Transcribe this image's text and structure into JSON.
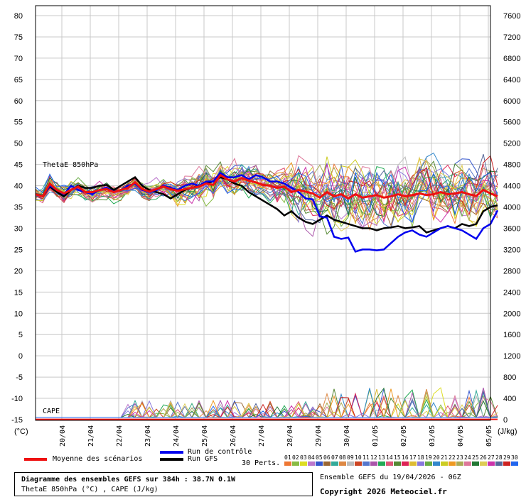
{
  "chart_data": {
    "type": "line",
    "left_axis": {
      "unit_label": "(°C)",
      "ylim": [
        -15,
        80
      ],
      "ticks": [
        80,
        75,
        70,
        65,
        60,
        55,
        50,
        45,
        40,
        35,
        30,
        25,
        20,
        15,
        10,
        5,
        0,
        -5,
        -10,
        -15
      ]
    },
    "right_axis": {
      "unit_label": "(J/kg)",
      "ylim": [
        0,
        7600
      ],
      "ticks": [
        7600,
        7200,
        6800,
        6400,
        6000,
        5600,
        5200,
        4800,
        4400,
        4000,
        3600,
        3200,
        2800,
        2400,
        2000,
        1600,
        1200,
        800,
        400,
        0
      ]
    },
    "x_ticks": [
      "20/04",
      "21/04",
      "22/04",
      "23/04",
      "24/04",
      "25/04",
      "26/04",
      "27/04",
      "28/04",
      "29/04",
      "30/04",
      "01/05",
      "02/05",
      "03/05",
      "04/05",
      "05/05"
    ],
    "x_range": [
      0,
      64
    ],
    "grid": true,
    "annotations": {
      "thetae": "ThetaE 850hPa",
      "cape": "CAPE"
    },
    "series": [
      {
        "name": "Moyenne des scénarios",
        "color": "#ee1111",
        "values": [
          38,
          37.5,
          40.5,
          39,
          38.2,
          39,
          39.8,
          38.5,
          38.5,
          39,
          39.2,
          38.5,
          39,
          39.5,
          40.8,
          39.2,
          38.6,
          39.2,
          39.8,
          39.2,
          38.8,
          39.2,
          39.5,
          39.8,
          40.5,
          40.2,
          42.5,
          41.5,
          41,
          41.8,
          41.2,
          40.8,
          40.2,
          40,
          39.5,
          39.8,
          38.5,
          39,
          38.6,
          38.2,
          37.2,
          38.5,
          37.5,
          38,
          37,
          38,
          37.2,
          37.5,
          37.8,
          37.2,
          37.5,
          38,
          37.5,
          37.8,
          38.2,
          37.8,
          38,
          38.5,
          38,
          38.2,
          38.5,
          38,
          37.6,
          39,
          38.2,
          37.5
        ]
      },
      {
        "name": "Run de contrôle",
        "color": "#0000ee",
        "values": [
          38,
          37.5,
          40,
          39,
          38,
          40,
          39,
          38.5,
          38,
          39,
          39.5,
          38.6,
          39,
          40,
          40.5,
          39,
          38.5,
          39,
          40,
          39.5,
          39,
          40,
          40.5,
          40,
          41,
          41,
          43,
          42,
          42,
          42.5,
          41.5,
          42.5,
          42,
          41,
          41,
          40.5,
          39.5,
          38.5,
          37,
          36.8,
          32.8,
          32.5,
          28,
          27.5,
          27.8,
          24.5,
          25,
          25,
          24.8,
          25,
          26.5,
          28,
          29,
          29.5,
          28.5,
          28,
          29,
          30,
          30.5,
          30,
          29.5,
          28.5,
          27.5,
          30,
          31,
          34.2
        ]
      },
      {
        "name": "Run GFS",
        "color": "#000000",
        "values": [
          38,
          37.5,
          39.8,
          38.5,
          37.5,
          39,
          40,
          39.5,
          39.5,
          40,
          40.2,
          39,
          40,
          41,
          42,
          40,
          39,
          38.5,
          38,
          37,
          38,
          39,
          39.5,
          40,
          40.5,
          41,
          42,
          41.5,
          40.5,
          40,
          38.5,
          37.5,
          36.5,
          35.5,
          34.5,
          33,
          34,
          32.5,
          31.5,
          31,
          32,
          33,
          32,
          31.5,
          31,
          30.5,
          30,
          30,
          29.5,
          30,
          30.2,
          30.5,
          30,
          30.2,
          30.5,
          29,
          29.5,
          30,
          30.5,
          30,
          31,
          30.5,
          31,
          34,
          35,
          35.4
        ]
      },
      {
        "name": "CAPE",
        "color": "#000000",
        "values": [
          5,
          5,
          5,
          5,
          5,
          5,
          5,
          5,
          5,
          5,
          5,
          5,
          5,
          5,
          5,
          5,
          5,
          5,
          5,
          5,
          5,
          5,
          5,
          5,
          5,
          5,
          5,
          5,
          5,
          5,
          5,
          5,
          5,
          5,
          5,
          5,
          5,
          5,
          5,
          5,
          5,
          5,
          5,
          5,
          5,
          5,
          5,
          5,
          5,
          5,
          5,
          5,
          5,
          5,
          5,
          5,
          5,
          5,
          5,
          5,
          5,
          5,
          5,
          5,
          5,
          5
        ]
      }
    ],
    "legend": {
      "mean": "Moyenne des scénarios",
      "control": "Run de contrôle",
      "gfs": "Run GFS",
      "perts": "30 Perts.",
      "members": [
        "01",
        "02",
        "03",
        "04",
        "05",
        "06",
        "07",
        "08",
        "09",
        "10",
        "11",
        "12",
        "13",
        "14",
        "15",
        "16",
        "17",
        "18",
        "19",
        "20",
        "21",
        "22",
        "23",
        "24",
        "25",
        "26",
        "27",
        "28",
        "29",
        "30"
      ],
      "member_colors": [
        "#ee7733",
        "#88bb44",
        "#dddd22",
        "#bb77cc",
        "#3355cc",
        "#996633",
        "#33aa99",
        "#dd8844",
        "#bbbbbb",
        "#cc4422",
        "#5577cc",
        "#aa55aa",
        "#22aa55",
        "#dd5577",
        "#558833",
        "#dd2255",
        "#ddbb33",
        "#8877dd",
        "#66aa44",
        "#3388cc",
        "#cccc22",
        "#ee9922",
        "#aaaa55",
        "#dd7799",
        "#227733",
        "#ddcc55",
        "#cc33aa",
        "#556699",
        "#cc2222",
        "#2266ee"
      ]
    }
  },
  "info": {
    "line1": "Diagramme des ensembles GEFS sur 384h : 38.7N 0.1W",
    "line2": "ThetaE 850hPa (°C) , CAPE (J/kg)",
    "run": "Ensemble GEFS du 19/04/2026 - 06Z",
    "copyright": "Copyright 2026 Meteociel.fr"
  }
}
